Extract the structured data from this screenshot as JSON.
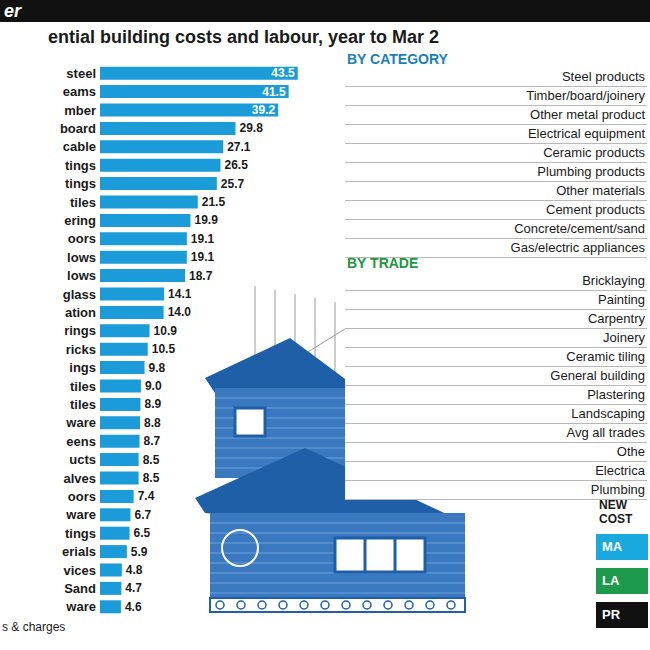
{
  "header": {
    "tag": "er",
    "title": "ential building costs and labour, year to Mar 2"
  },
  "chart_data": {
    "type": "bar",
    "orientation": "horizontal",
    "categories": [
      "steel",
      "eams",
      "mber",
      "board",
      "cable",
      "tings",
      "tings",
      "tiles",
      "ering",
      "oors",
      "lows",
      "lows",
      "glass",
      "ation",
      "rings",
      "ricks",
      "ings",
      "tiles",
      "tiles",
      "ware",
      "eens",
      "ucts",
      "alves",
      "oors",
      "ware",
      "tings",
      "erials",
      "vices",
      "Sand",
      "ware"
    ],
    "values": [
      43.5,
      41.5,
      39.2,
      29.8,
      27.1,
      26.5,
      25.7,
      21.5,
      19.9,
      19.1,
      19.1,
      18.7,
      14.1,
      14.0,
      10.9,
      10.5,
      9.8,
      9.0,
      8.9,
      8.8,
      8.7,
      8.5,
      8.5,
      7.4,
      6.7,
      6.5,
      5.9,
      4.8,
      4.7,
      4.6
    ],
    "value_labels": [
      "43.5",
      "41.5",
      "39.2",
      "29.8",
      "27.1",
      "26.5",
      "25.7",
      "21.5",
      "19.9",
      "19.1",
      "19.1",
      "18.7",
      "14.1",
      "14.0",
      "10.9",
      "10.5",
      "9.8",
      "9.0",
      "8.9",
      "8.8",
      "8.7",
      "8.5",
      "8.5",
      "7.4",
      "6.7",
      "6.5",
      "5.9",
      "4.8",
      "4.7",
      "4.6"
    ],
    "color": "#1b9bd7",
    "xlim": [
      0,
      44
    ],
    "data_labels": true,
    "tick_labels": "y",
    "grid": false
  },
  "by_category": {
    "title": "BY CATEGORY",
    "items": [
      "Steel products",
      "Timber/board/joinery",
      "Other metal product",
      "Electrical equipment",
      "Ceramic products",
      "Plumbing products",
      "Other materials",
      "Cement products",
      "Concrete/cement/sand",
      "Gas/electric appliances"
    ]
  },
  "by_trade": {
    "title": "BY TRADE",
    "items": [
      "Bricklaying",
      "Painting",
      "Carpentry",
      "Joinery",
      "Ceramic tiling",
      "General building",
      "Plastering",
      "Landscaping",
      "Avg all trades",
      "Othe",
      "Electrica",
      "Plumbing"
    ]
  },
  "legend_box": {
    "title": [
      "NEW",
      "COST"
    ],
    "items": [
      {
        "label": "MA",
        "color": "#19a9df"
      },
      {
        "label": "LA",
        "color": "#1e9a4c"
      },
      {
        "label": "PR",
        "color": "#111111"
      }
    ]
  },
  "footnote": "s & charges"
}
